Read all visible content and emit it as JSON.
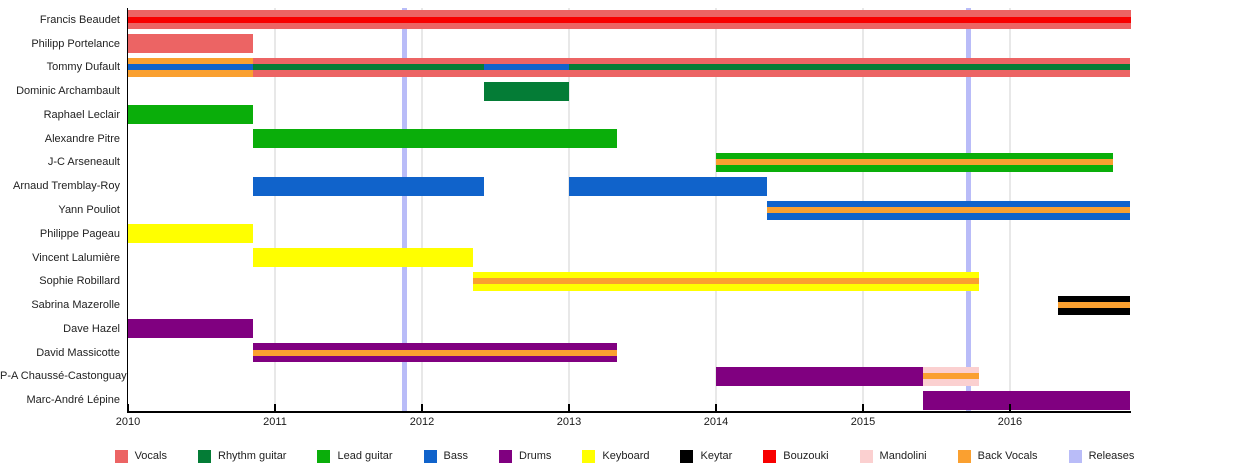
{
  "chart_data": {
    "type": "timeline (horizontal gantt bars of band membership)",
    "title": "",
    "x_axis": {
      "min": 2010,
      "max": 2016.82,
      "ticks": [
        2010,
        2011,
        2012,
        2013,
        2014,
        2015,
        2016
      ],
      "tick_labels": [
        "2010",
        "2011",
        "2012",
        "2013",
        "2014",
        "2015",
        "2016"
      ],
      "gridlines": true
    },
    "legend": [
      {
        "label": "Vocals",
        "role": "vocals",
        "color": "#ec6464"
      },
      {
        "label": "Rhythm guitar",
        "role": "rhythm_guitar",
        "color": "#047c36"
      },
      {
        "label": "Lead guitar",
        "role": "lead_guitar",
        "color": "#0aae0a"
      },
      {
        "label": "Bass",
        "role": "bass",
        "color": "#1063cb"
      },
      {
        "label": "Drums",
        "role": "drums",
        "color": "#800080"
      },
      {
        "label": "Keyboard",
        "role": "keyboard",
        "color": "#ffff00"
      },
      {
        "label": "Keytar",
        "role": "keytar",
        "color": "#000000"
      },
      {
        "label": "Bouzouki",
        "role": "bouzouki",
        "color": "#f80000"
      },
      {
        "label": "Mandolini",
        "role": "mandolini",
        "color": "#fbd0d0"
      },
      {
        "label": "Back Vocals",
        "role": "back_vocals",
        "color": "#faa030"
      },
      {
        "label": "Releases",
        "role": "releases",
        "color": "#b9bcf8"
      }
    ],
    "releases": [
      {
        "time": 2011.88
      },
      {
        "time": 2015.72
      }
    ],
    "members": [
      {
        "name": "Francis Beaudet",
        "segments": [
          {
            "start": 2010.0,
            "end": 2016.82,
            "main": "vocals",
            "stripe": "bouzouki"
          }
        ]
      },
      {
        "name": "Philipp Portelance",
        "segments": [
          {
            "start": 2010.0,
            "end": 2010.85,
            "main": "vocals"
          }
        ]
      },
      {
        "name": "Tommy Dufault",
        "segments": [
          {
            "start": 2010.0,
            "end": 2010.85,
            "main": "back_vocals",
            "stripe": "bass"
          },
          {
            "start": 2010.85,
            "end": 2016.82,
            "main": "vocals",
            "stripes": [
              {
                "start": 2010.85,
                "end": 2012.42,
                "role": "rhythm_guitar"
              },
              {
                "start": 2012.42,
                "end": 2013.0,
                "role": "bass"
              },
              {
                "start": 2013.0,
                "end": 2016.82,
                "role": "rhythm_guitar"
              }
            ]
          }
        ]
      },
      {
        "name": "Dominic Archambault",
        "segments": [
          {
            "start": 2012.42,
            "end": 2013.0,
            "main": "rhythm_guitar"
          }
        ]
      },
      {
        "name": "Raphael Leclair",
        "segments": [
          {
            "start": 2010.0,
            "end": 2010.85,
            "main": "lead_guitar"
          }
        ]
      },
      {
        "name": "Alexandre Pitre",
        "segments": [
          {
            "start": 2010.85,
            "end": 2013.33,
            "main": "lead_guitar"
          }
        ]
      },
      {
        "name": "J-C Arseneault",
        "segments": [
          {
            "start": 2014.0,
            "end": 2016.7,
            "main": "lead_guitar",
            "stripe": "back_vocals"
          }
        ]
      },
      {
        "name": "Arnaud Tremblay-Roy",
        "segments": [
          {
            "start": 2010.85,
            "end": 2012.42,
            "main": "bass"
          },
          {
            "start": 2013.0,
            "end": 2014.35,
            "main": "bass"
          }
        ]
      },
      {
        "name": "Yann Pouliot",
        "segments": [
          {
            "start": 2014.35,
            "end": 2016.82,
            "main": "bass",
            "stripe": "back_vocals"
          }
        ]
      },
      {
        "name": "Philippe Pageau",
        "segments": [
          {
            "start": 2010.0,
            "end": 2010.85,
            "main": "keyboard"
          }
        ]
      },
      {
        "name": "Vincent Lalumière",
        "segments": [
          {
            "start": 2010.85,
            "end": 2012.35,
            "main": "keyboard"
          }
        ]
      },
      {
        "name": "Sophie Robillard",
        "segments": [
          {
            "start": 2012.35,
            "end": 2015.79,
            "main": "keyboard",
            "stripe": "back_vocals"
          }
        ]
      },
      {
        "name": "Sabrina Mazerolle",
        "segments": [
          {
            "start": 2016.33,
            "end": 2016.82,
            "main": "keytar",
            "stripe": "back_vocals"
          }
        ]
      },
      {
        "name": "Dave Hazel",
        "segments": [
          {
            "start": 2010.0,
            "end": 2010.85,
            "main": "drums"
          }
        ]
      },
      {
        "name": "David Massicotte",
        "segments": [
          {
            "start": 2010.85,
            "end": 2013.33,
            "main": "drums",
            "stripe": "back_vocals"
          }
        ]
      },
      {
        "name": "P-A Chaussé-Castonguay",
        "segments": [
          {
            "start": 2014.0,
            "end": 2015.41,
            "main": "drums"
          },
          {
            "start": 2015.41,
            "end": 2015.79,
            "main": "mandolini",
            "stripe": "back_vocals"
          }
        ]
      },
      {
        "name": "Marc-André Lépine",
        "segments": [
          {
            "start": 2015.41,
            "end": 2016.82,
            "main": "drums"
          }
        ]
      }
    ]
  }
}
